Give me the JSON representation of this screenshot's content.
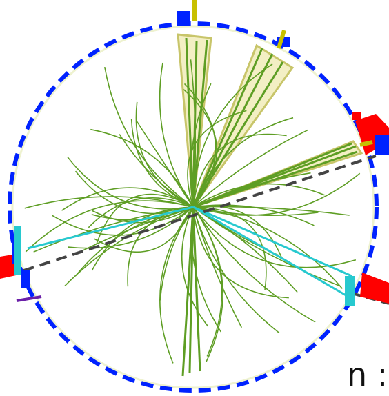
{
  "caption": "n :",
  "colors": {
    "detector_ring": "#eef2cf",
    "track": "#5e9e24",
    "jet_fill": "#f3efc4",
    "jet_edge": "#c8c56a",
    "lepton_track": "#27c9cf",
    "missing_et": "#444444",
    "ecal_tower": "#ff0000",
    "hcal_tower": "#0022ff",
    "muon_stub": "#c8c000",
    "purple_stub": "#6a1fa8"
  }
}
